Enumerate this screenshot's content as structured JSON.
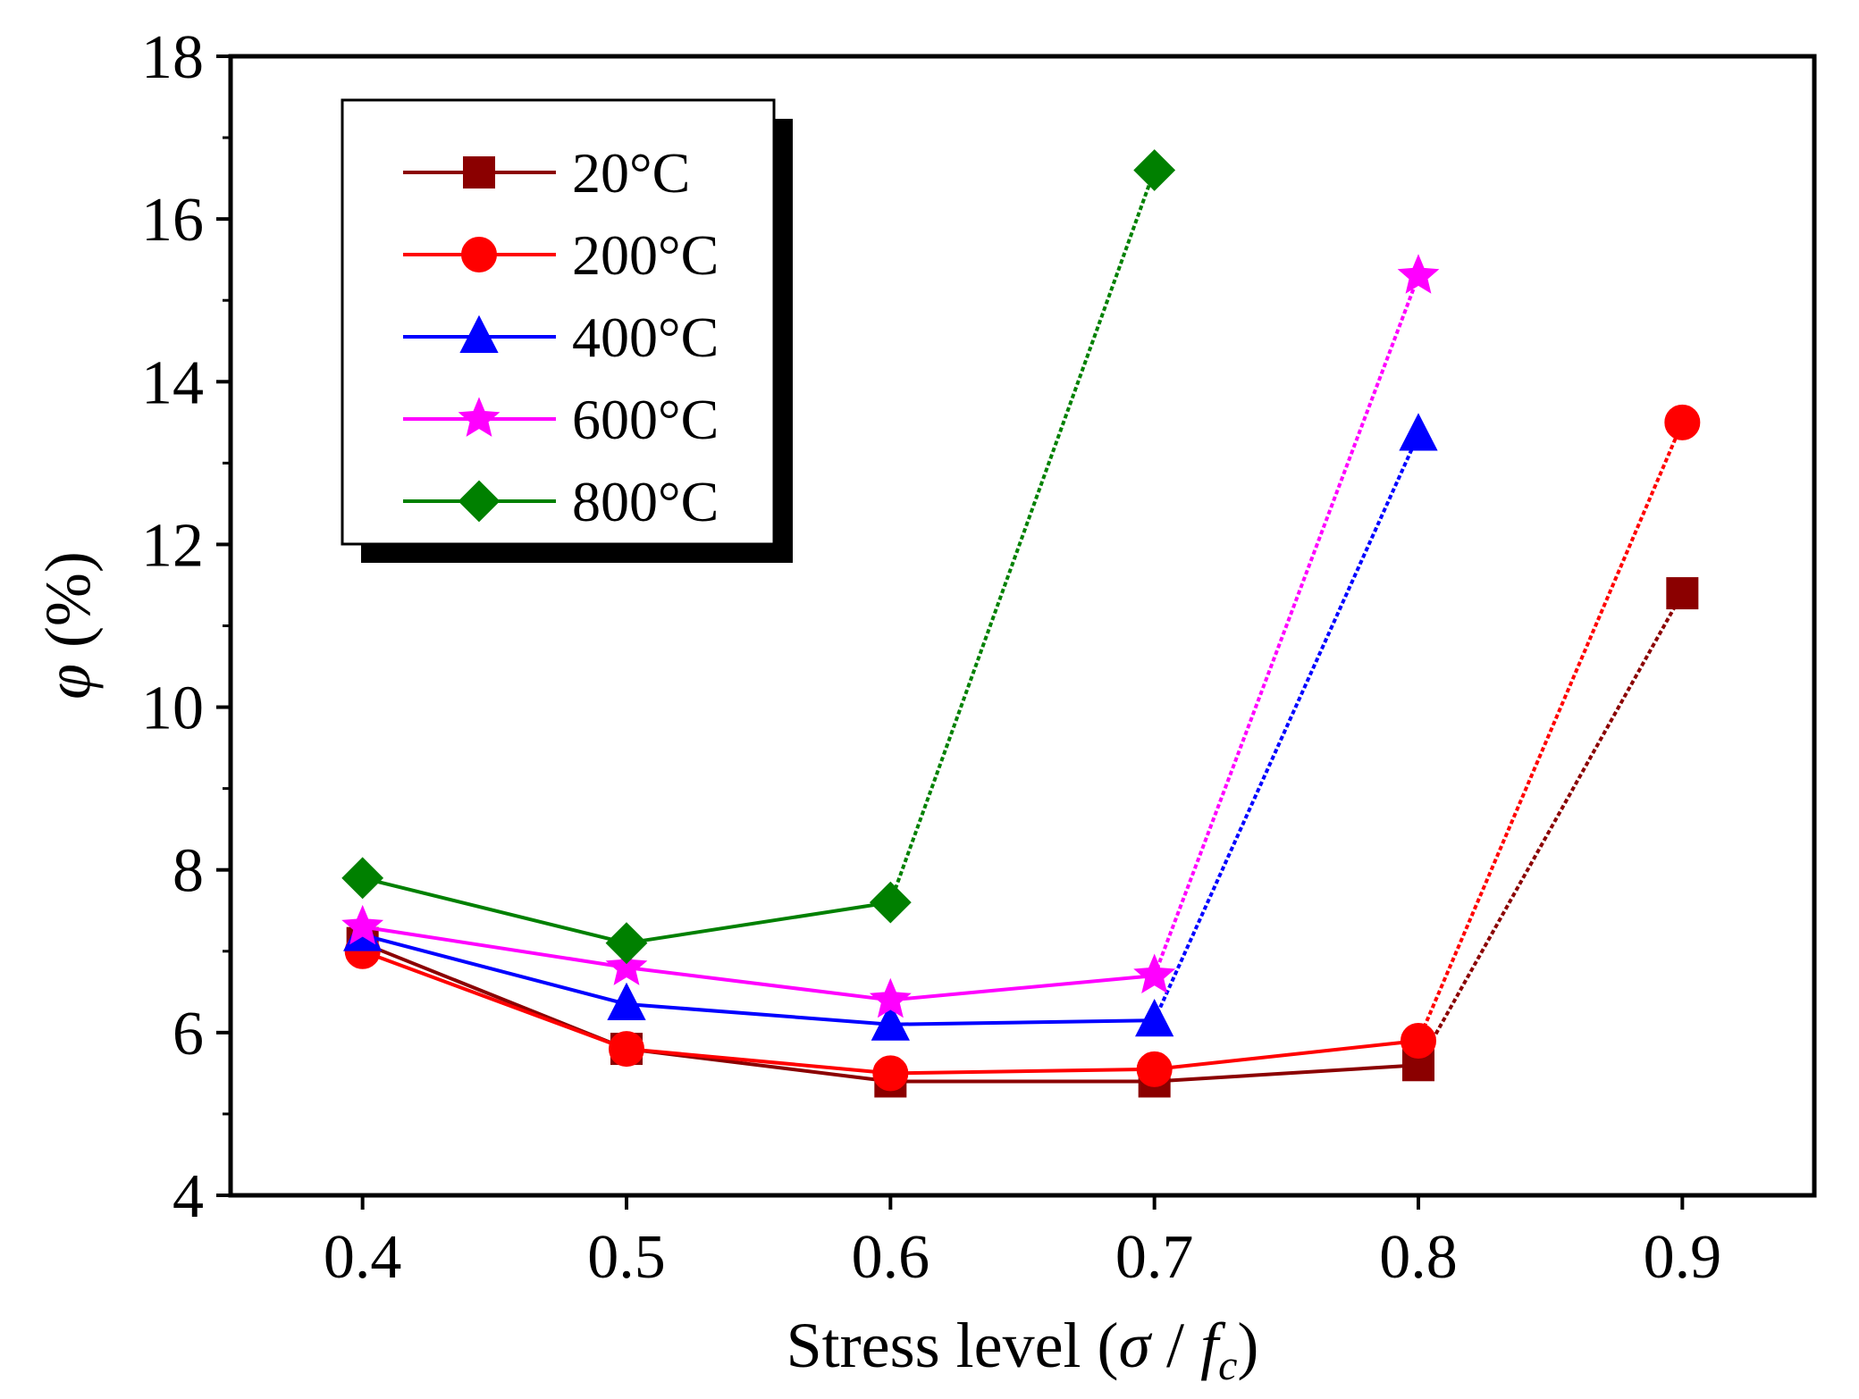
{
  "chart_data": {
    "type": "line",
    "x": [
      0.4,
      0.5,
      0.6,
      0.7,
      0.8,
      0.9
    ],
    "xticks": [
      "0.4",
      "0.5",
      "0.6",
      "0.7",
      "0.8",
      "0.9"
    ],
    "yticks": [
      "4",
      "6",
      "8",
      "10",
      "12",
      "14",
      "16",
      "18"
    ],
    "xlim": [
      0.35,
      0.95
    ],
    "ylim": [
      4,
      18
    ],
    "xlabel": {
      "prefix": "Stress level (",
      "sigma": "σ",
      "slash": " / ",
      "f": "f",
      "sub": "c",
      "suffix": ")"
    },
    "ylabel": {
      "phi": "φ",
      "unit": " (%)"
    },
    "grid": false,
    "legend_position": "top-left",
    "series": [
      {
        "name": "20°C",
        "color": "#8b0000",
        "marker": "square",
        "x": [
          0.4,
          0.5,
          0.6,
          0.7,
          0.8,
          0.9
        ],
        "values": [
          7.1,
          5.8,
          5.4,
          5.4,
          5.6,
          11.4
        ]
      },
      {
        "name": "200°C",
        "color": "#ff0000",
        "marker": "circle",
        "x": [
          0.4,
          0.5,
          0.6,
          0.7,
          0.8,
          0.9
        ],
        "values": [
          7.0,
          5.8,
          5.5,
          5.55,
          5.9,
          13.5
        ]
      },
      {
        "name": "400°C",
        "color": "#0000ff",
        "marker": "triangle",
        "x": [
          0.4,
          0.5,
          0.6,
          0.7,
          0.8
        ],
        "values": [
          7.2,
          6.35,
          6.1,
          6.15,
          13.35
        ]
      },
      {
        "name": "600°C",
        "color": "#ff00ff",
        "marker": "star",
        "x": [
          0.4,
          0.5,
          0.6,
          0.7,
          0.8
        ],
        "values": [
          7.3,
          6.8,
          6.4,
          6.7,
          15.3
        ]
      },
      {
        "name": "800°C",
        "color": "#008000",
        "marker": "diamond",
        "x": [
          0.4,
          0.5,
          0.6,
          0.7
        ],
        "values": [
          7.9,
          7.1,
          7.6,
          16.6
        ]
      }
    ]
  }
}
